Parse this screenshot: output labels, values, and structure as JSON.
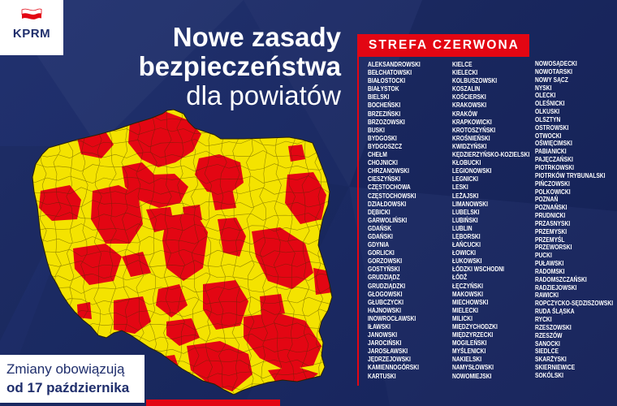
{
  "logo": {
    "text": "KPRM",
    "icon": "kprm-flag-icon"
  },
  "title": {
    "line1": "Nowe zasady",
    "line2": "bezpieczeństwa",
    "line3": "dla powiatów"
  },
  "red_zone": {
    "label": "STREFA CZERWONA",
    "columns": [
      [
        "ALEKSANDROWSKI",
        "BEŁCHATOWSKI",
        "BIAŁOSTOCKI",
        "BIAŁYSTOK",
        "BIELSKI",
        "BOCHEŃSKI",
        "BRZEZIŃSKI",
        "BRZOZOWSKI",
        "BUSKI",
        "BYDGOSKI",
        "BYDGOSZCZ",
        "CHEŁM",
        "CHOJNICKI",
        "CHRZANOWSKI",
        "CIESZYŃSKI",
        "CZĘSTOCHOWA",
        "CZĘSTOCHOWSKI",
        "DZIAŁDOWSKI",
        "DĘBICKI",
        "GARWOLIŃSKI",
        "GDAŃSK",
        "GDAŃSKI",
        "GDYNIA",
        "GORLICKI",
        "GORZOWSKI",
        "GOSTYŃSKI",
        "GRUDZIĄDZ",
        "GRUDZIĄDZKI",
        "GŁOGOWSKI",
        "GŁUBCZYCKI",
        "HAJNOWSKI",
        "INOWROCŁAWSKI",
        "IŁAWSKI",
        "JANOWSKI",
        "JAROCIŃSKI",
        "JAROSŁAWSKI",
        "JĘDRZEJOWSKI",
        "KAMIENNOGÓRSKI",
        "KARTUSKI"
      ],
      [
        "KIELCE",
        "KIELECKI",
        "KOLBUSZOWSKI",
        "KOSZALIN",
        "KOŚCIERSKI",
        "KRAKOWSKI",
        "KRAKÓW",
        "KRAPKOWICKI",
        "KROTOSZYŃSKI",
        "KROŚNIEŃSKI",
        "KWIDZYŃSKI",
        "KĘDZIERZYŃSKO-KOZIELSKI",
        "KŁOBUCKI",
        "LEGIONOWSKI",
        "LEGNICKI",
        "LESKI",
        "LEŻAJSKI",
        "LIMANOWSKI",
        "LUBELSKI",
        "LUBIŃSKI",
        "LUBLIN",
        "LĘBORSKI",
        "ŁAŃCUCKI",
        "ŁOWICKI",
        "ŁUKOWSKI",
        "ŁÓDZKI WSCHODNI",
        "ŁÓDŹ",
        "ŁĘCZYŃSKI",
        "MAKOWSKI",
        "MIECHOWSKI",
        "MIELECKI",
        "MILICKI",
        "MIĘDZYCHODZKI",
        "MIĘDZYRZECKI",
        "MOGILEŃSKI",
        "MYŚLENICKI",
        "NAKIELSKI",
        "NAMYSŁOWSKI",
        "NOWOMIEJSKI"
      ],
      [
        "NOWOSĄDECKI",
        "NOWOTARSKI",
        "NOWY SĄCZ",
        "NYSKI",
        "OLECKI",
        "OLEŚNICKI",
        "OLKUSKI",
        "OLSZTYN",
        "OSTROWSKI",
        "OTWOCKI",
        "OŚWIĘCIMSKI",
        "PABIANICKI",
        "PAJĘCZAŃSKI",
        "PIOTRKOWSKI",
        "PIOTRKÓW TRYBUNALSKI",
        "PIŃCZOWSKI",
        "POLKOWICKI",
        "POZNAŃ",
        "POZNAŃSKI",
        "PRUDNICKI",
        "PRZASNYSKI",
        "PRZEMYSKI",
        "PRZEMYŚL",
        "PRZEWORSKI",
        "PUCKI",
        "PUŁAWSKI",
        "RADOMSKI",
        "RADOMSZCZAŃSKI",
        "RADZIEJOWSKI",
        "RAWICKI",
        "ROPCZYCKO-SĘDZISZOWSKI",
        "RUDA ŚLĄSKA",
        "RYCKI",
        "RZESZOWSKI",
        "RZESZÓW",
        "SANOCKI",
        "SIEDLCE",
        "SKARŻYSKI",
        "SKIERNIEWICE",
        "SOKÓLSKI"
      ]
    ]
  },
  "notice": {
    "line1": "Zmiany obowiązują",
    "line2": "od 17 października"
  },
  "colors": {
    "background": "#1d2c69",
    "accent_red": "#e30613",
    "map_yellow": "#f4e300",
    "text_light": "#ffffff",
    "text_dark": "#1f2e6c"
  }
}
